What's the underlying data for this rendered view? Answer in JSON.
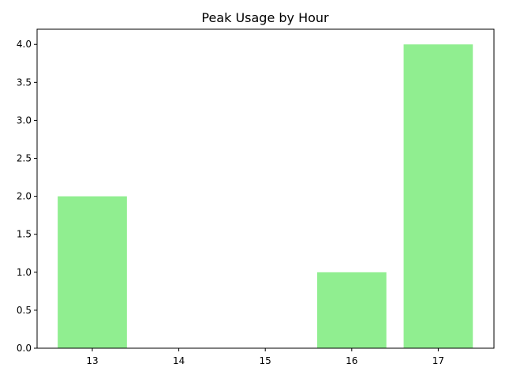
{
  "chart_data": {
    "type": "bar",
    "title": "Peak Usage by Hour",
    "xlabel": "",
    "ylabel": "",
    "categories": [
      "13",
      "14",
      "15",
      "16",
      "17"
    ],
    "values": [
      2,
      0,
      0,
      1,
      4
    ],
    "ylim": [
      0,
      4.2
    ],
    "yticks": [
      "0.0",
      "0.5",
      "1.0",
      "1.5",
      "2.0",
      "2.5",
      "3.0",
      "3.5",
      "4.0"
    ],
    "grid": false,
    "legend": "none",
    "bar_color": "#90ee90"
  }
}
